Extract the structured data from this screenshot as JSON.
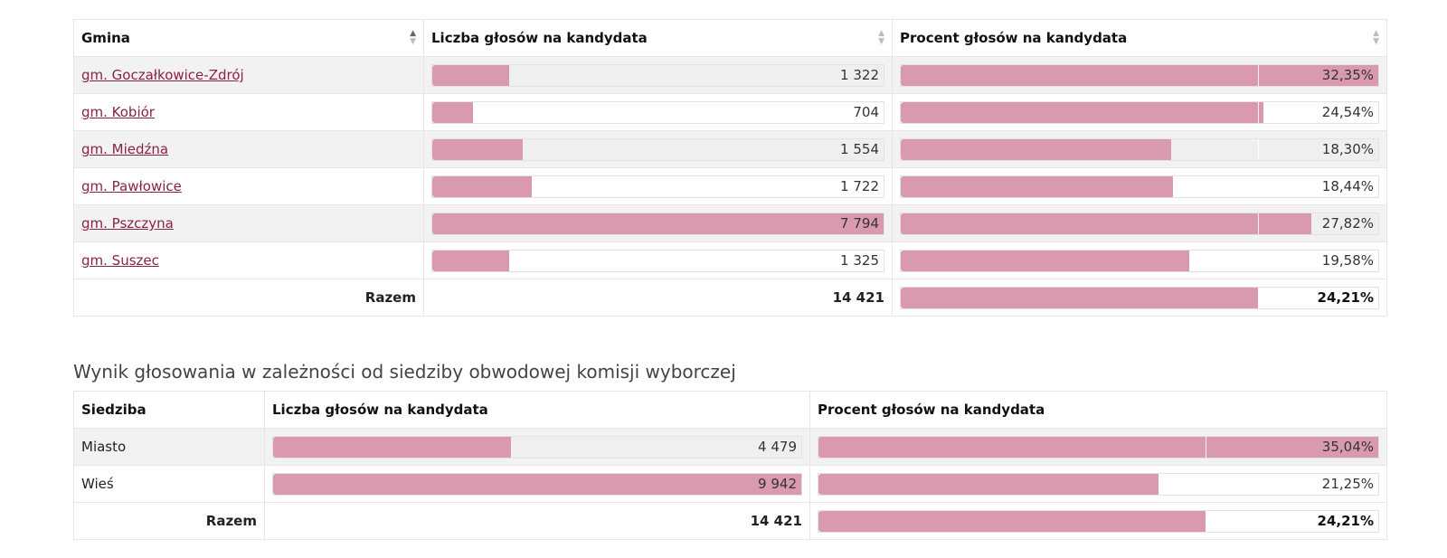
{
  "table1": {
    "headers": {
      "gmina": "Gmina",
      "liczba": "Liczba głosów na kandydata",
      "procent": "Procent głosów na kandydata"
    },
    "rows": [
      {
        "name": "gm. Goczałkowice-Zdrój",
        "votes": "1 322",
        "votes_frac": 0.17,
        "pct": "32,35%",
        "pct_frac": 1.0
      },
      {
        "name": "gm. Kobiór",
        "votes": "704",
        "votes_frac": 0.09,
        "pct": "24,54%",
        "pct_frac": 0.76
      },
      {
        "name": "gm. Miedźna",
        "votes": "1 554",
        "votes_frac": 0.2,
        "pct": "18,30%",
        "pct_frac": 0.566
      },
      {
        "name": "gm. Pawłowice",
        "votes": "1 722",
        "votes_frac": 0.22,
        "pct": "18,44%",
        "pct_frac": 0.57
      },
      {
        "name": "gm. Pszczyna",
        "votes": "7 794",
        "votes_frac": 1.0,
        "pct": "27,82%",
        "pct_frac": 0.86
      },
      {
        "name": "gm. Suszec",
        "votes": "1 325",
        "votes_frac": 0.17,
        "pct": "19,58%",
        "pct_frac": 0.605
      }
    ],
    "total": {
      "label": "Razem",
      "votes": "14 421",
      "pct": "24,21%",
      "pct_frac": 0.748
    },
    "avg_frac": 0.748
  },
  "caption": "Wynik głosowania w zależności od siedziby obwodowej komisji wyborczej",
  "table2": {
    "headers": {
      "siedziba": "Siedziba",
      "liczba": "Liczba głosów na kandydata",
      "procent": "Procent głosów na kandydata"
    },
    "rows": [
      {
        "name": "Miasto",
        "votes": "4 479",
        "votes_frac": 0.45,
        "pct": "35,04%",
        "pct_frac": 1.0
      },
      {
        "name": "Wieś",
        "votes": "9 942",
        "votes_frac": 1.0,
        "pct": "21,25%",
        "pct_frac": 0.607
      }
    ],
    "total": {
      "label": "Razem",
      "votes": "14 421",
      "pct": "24,21%",
      "pct_frac": 0.691
    },
    "avg_frac": 0.691
  },
  "colors": {
    "bar": "#d99aad",
    "link": "#8a2244",
    "stripe": "#f2f2f2"
  },
  "icons": {
    "sort": "sort-arrows-icon"
  }
}
